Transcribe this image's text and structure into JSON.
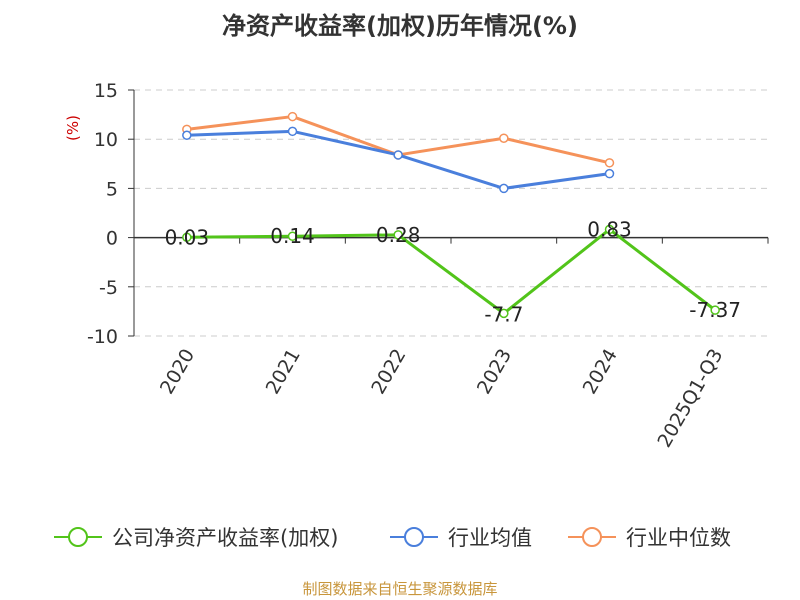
{
  "chart_data": {
    "type": "line",
    "title": "净资产收益率(加权)历年情况(%)",
    "ylabel": "(%)",
    "xlabel": "",
    "ylim": [
      -10,
      15
    ],
    "yticks": [
      15,
      10,
      5,
      0,
      -5,
      -10
    ],
    "grid": true,
    "legend_position": "bottom",
    "categories": [
      "2020",
      "2021",
      "2022",
      "2023",
      "2024",
      "2025Q1-Q3"
    ],
    "series": [
      {
        "name": "公司净资产收益率(加权)",
        "color": "#52c41a",
        "values": [
          0.03,
          0.14,
          0.28,
          -7.7,
          0.83,
          -7.37
        ],
        "labels": [
          "0.03",
          "0.14",
          "0.28",
          "-7.7",
          "0.83",
          "-7.37"
        ]
      },
      {
        "name": "行业均值",
        "color": "#4a7fdc",
        "values": [
          10.4,
          10.8,
          8.4,
          5.0,
          6.5,
          null
        ]
      },
      {
        "name": "行业中位数",
        "color": "#f5925a",
        "values": [
          11.0,
          12.3,
          8.4,
          10.1,
          7.6,
          null
        ]
      }
    ]
  },
  "footer": {
    "source": "制图数据来自恒生聚源数据库"
  }
}
